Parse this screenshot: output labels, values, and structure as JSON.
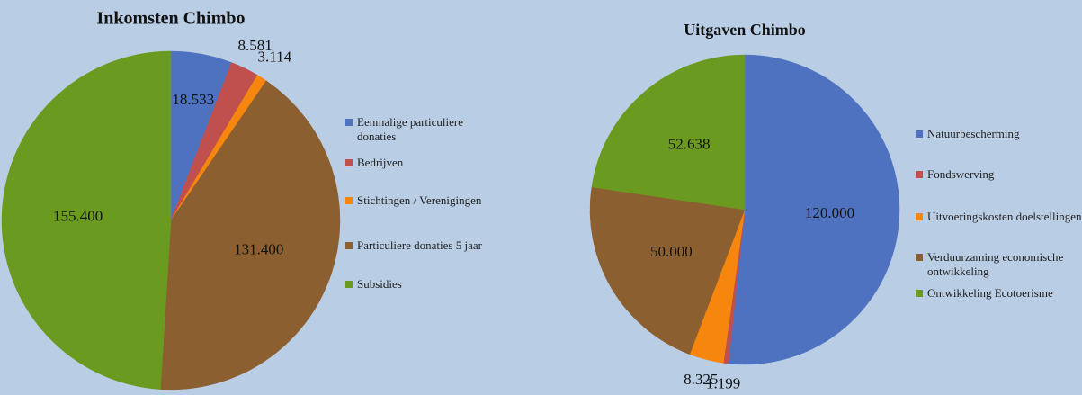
{
  "chart_data": [
    {
      "type": "pie",
      "title": "Inkomsten Chimbo",
      "categories": [
        "Eenmalige particuliere donaties",
        "Bedrijven",
        "Stichtingen / Verenigingen",
        "Particuliere donaties 5 jaar",
        "Subsidies"
      ],
      "values": [
        18533,
        8581,
        3114,
        131400,
        155400
      ],
      "value_labels": [
        "18.533",
        "8.581",
        "3.114",
        "131.400",
        "155.400"
      ],
      "colors": [
        "#4f72c0",
        "#c0504d",
        "#f7860f",
        "#8c5f30",
        "#6a9a1f"
      ]
    },
    {
      "type": "pie",
      "title": "Uitgaven Chimbo",
      "categories": [
        "Natuurbescherming",
        "Fondswerving",
        "Uitvoeringskosten doelstellingen",
        "Verduurzaming economische ontwikkeling",
        "Ontwikkeling Ecotoerisme"
      ],
      "values": [
        120000,
        1199,
        8325,
        50000,
        52638
      ],
      "value_labels": [
        "120.000",
        "1.199",
        "8.325",
        "50.000",
        "52.638"
      ],
      "colors": [
        "#4f72c0",
        "#c0504d",
        "#f7860f",
        "#8c5f30",
        "#6a9a1f"
      ]
    }
  ]
}
